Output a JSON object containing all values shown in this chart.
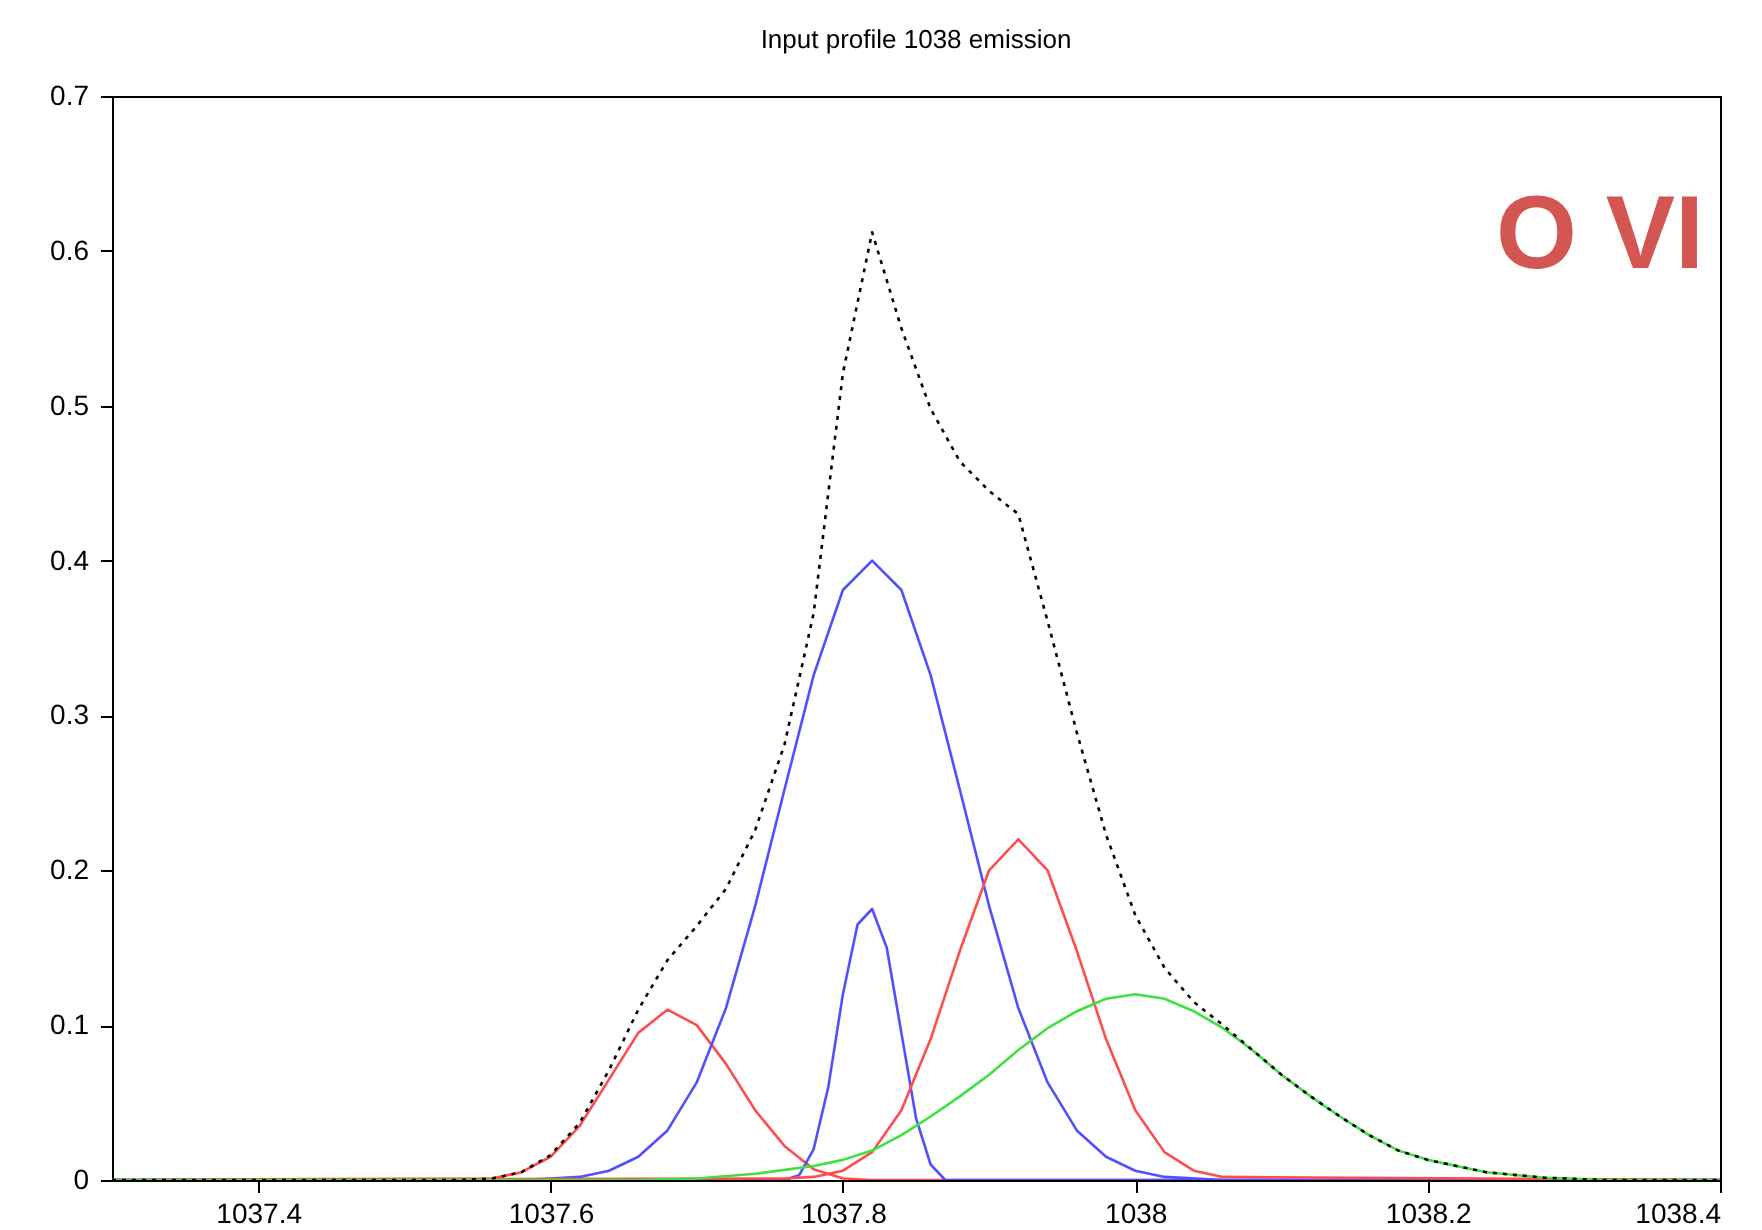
{
  "chart_data": {
    "type": "line",
    "title": "Input profile 1038 emission",
    "annotations": [
      "O VI"
    ],
    "xlim": [
      1037.3,
      1038.4
    ],
    "xticks": [
      1037.4,
      1037.6,
      1037.8,
      1038,
      1038.2,
      1038.4
    ],
    "ylim": [
      0,
      0.7
    ],
    "yticks": [
      0,
      0.1,
      0.2,
      0.3,
      0.4,
      0.5,
      0.6,
      0.7
    ],
    "grid": false,
    "marker": "none",
    "series": [
      {
        "color": "#ff4d4d",
        "line_style": "solid",
        "x": [
          1037.3,
          1037.56,
          1037.58,
          1037.6,
          1037.62,
          1037.64,
          1037.66,
          1037.68,
          1037.7,
          1037.72,
          1037.74,
          1037.76,
          1037.78,
          1037.8,
          1037.82,
          1038.4
        ],
        "values": [
          0,
          0.001,
          0.005,
          0.015,
          0.035,
          0.065,
          0.095,
          0.11,
          0.1,
          0.075,
          0.045,
          0.022,
          0.007,
          0.001,
          0,
          0
        ]
      },
      {
        "color": "#5050ff",
        "line_style": "solid",
        "x": [
          1037.3,
          1037.58,
          1037.6,
          1037.62,
          1037.64,
          1037.66,
          1037.68,
          1037.7,
          1037.72,
          1037.74,
          1037.76,
          1037.78,
          1037.8,
          1037.82,
          1037.84,
          1037.86,
          1037.88,
          1037.9,
          1037.92,
          1037.94,
          1037.96,
          1037.98,
          1038.0,
          1038.02,
          1038.06,
          1038.4
        ],
        "values": [
          0,
          0,
          0.001,
          0.002,
          0.006,
          0.015,
          0.032,
          0.063,
          0.111,
          0.177,
          0.252,
          0.326,
          0.381,
          0.4,
          0.381,
          0.326,
          0.252,
          0.177,
          0.111,
          0.063,
          0.032,
          0.015,
          0.006,
          0.002,
          0,
          0
        ]
      },
      {
        "color": "#5050ff",
        "line_style": "solid",
        "x": [
          1037.3,
          1037.76,
          1037.77,
          1037.78,
          1037.79,
          1037.8,
          1037.81,
          1037.82,
          1037.83,
          1037.84,
          1037.85,
          1037.86,
          1037.87,
          1038.4
        ],
        "values": [
          0,
          0,
          0.003,
          0.02,
          0.06,
          0.12,
          0.165,
          0.175,
          0.15,
          0.095,
          0.04,
          0.01,
          0,
          0
        ]
      },
      {
        "color": "#ff4d4d",
        "line_style": "solid",
        "x": [
          1037.3,
          1037.76,
          1037.78,
          1037.8,
          1037.82,
          1037.84,
          1037.86,
          1037.88,
          1037.9,
          1037.92,
          1037.94,
          1037.96,
          1037.98,
          1038.0,
          1038.02,
          1038.04,
          1038.06,
          1038.4
        ],
        "values": [
          0,
          0.001,
          0.002,
          0.006,
          0.018,
          0.045,
          0.091,
          0.148,
          0.2,
          0.22,
          0.2,
          0.148,
          0.091,
          0.045,
          0.018,
          0.006,
          0.002,
          0
        ]
      },
      {
        "color": "#40e040",
        "line_style": "solid",
        "x": [
          1037.3,
          1037.66,
          1037.7,
          1037.74,
          1037.78,
          1037.8,
          1037.82,
          1037.84,
          1037.86,
          1037.88,
          1037.9,
          1037.92,
          1037.94,
          1037.96,
          1037.98,
          1038.0,
          1038.02,
          1038.04,
          1038.06,
          1038.08,
          1038.1,
          1038.12,
          1038.14,
          1038.16,
          1038.18,
          1038.2,
          1038.24,
          1038.28,
          1038.32,
          1038.4
        ],
        "values": [
          0,
          0,
          0.001,
          0.004,
          0.009,
          0.013,
          0.019,
          0.029,
          0.041,
          0.054,
          0.068,
          0.084,
          0.098,
          0.109,
          0.117,
          0.12,
          0.117,
          0.109,
          0.098,
          0.084,
          0.068,
          0.054,
          0.041,
          0.029,
          0.019,
          0.013,
          0.005,
          0.0015,
          0,
          0
        ]
      },
      {
        "color": "#000000",
        "line_style": "dotted",
        "x": [
          1037.3,
          1037.54,
          1037.56,
          1037.58,
          1037.6,
          1037.62,
          1037.64,
          1037.66,
          1037.68,
          1037.7,
          1037.72,
          1037.74,
          1037.76,
          1037.78,
          1037.8,
          1037.82,
          1037.84,
          1037.86,
          1037.88,
          1037.9,
          1037.92,
          1037.94,
          1037.96,
          1037.98,
          1038.0,
          1038.02,
          1038.04,
          1038.06,
          1038.08,
          1038.1,
          1038.12,
          1038.14,
          1038.16,
          1038.18,
          1038.2,
          1038.24,
          1038.28,
          1038.32,
          1038.4
        ],
        "values": [
          0,
          0,
          0.001,
          0.005,
          0.016,
          0.037,
          0.071,
          0.11,
          0.142,
          0.164,
          0.188,
          0.226,
          0.281,
          0.366,
          0.521,
          0.612,
          0.55,
          0.498,
          0.464,
          0.445,
          0.43,
          0.361,
          0.289,
          0.223,
          0.171,
          0.137,
          0.115,
          0.1,
          0.084,
          0.068,
          0.054,
          0.041,
          0.029,
          0.019,
          0.013,
          0.005,
          0.0015,
          0,
          0
        ]
      }
    ]
  }
}
